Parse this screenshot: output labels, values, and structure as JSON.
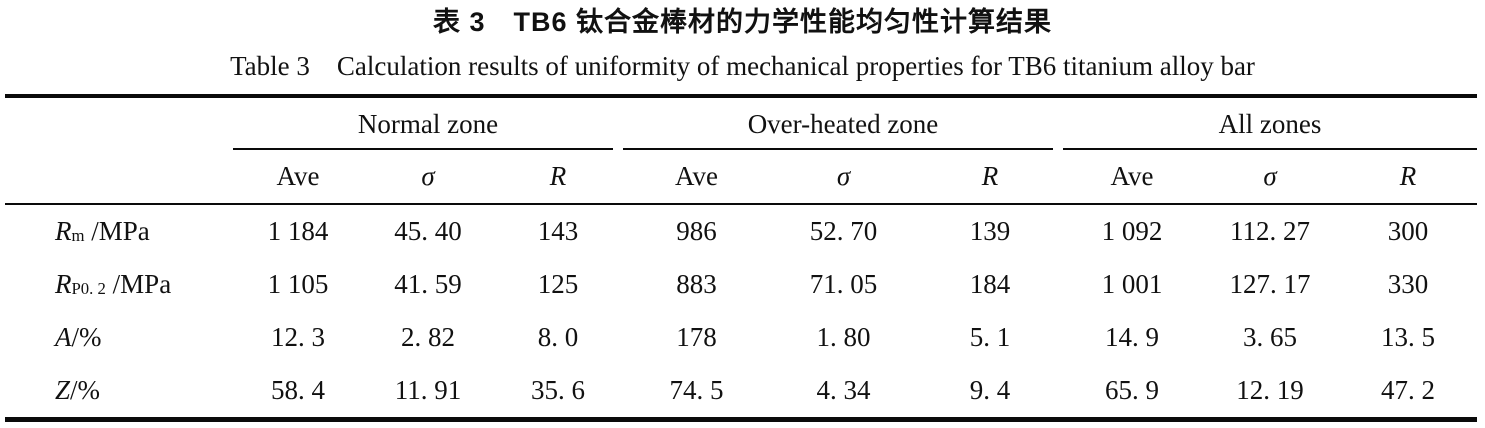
{
  "title": {
    "zh": "表 3　TB6 钛合金棒材的力学性能均匀性计算结果",
    "en": "Table 3　Calculation results of uniformity of mechanical properties for TB6 titanium alloy bar"
  },
  "table": {
    "groups": [
      {
        "label": "Normal zone"
      },
      {
        "label": "Over-heated zone"
      },
      {
        "label": "All zones"
      }
    ],
    "subheaders": [
      "Ave",
      "σ",
      "R"
    ],
    "rows": [
      {
        "property": {
          "symbol": "R",
          "subscript": "m",
          "unit": " /MPa"
        },
        "values": [
          "1 184",
          "45. 40",
          "143",
          "986",
          "52. 70",
          "139",
          "1 092",
          "112. 27",
          "300"
        ]
      },
      {
        "property": {
          "symbol": "R",
          "subscript": "P0. 2",
          "unit": " /MPa"
        },
        "values": [
          "1 105",
          "41. 59",
          "125",
          "883",
          "71. 05",
          "184",
          "1 001",
          "127. 17",
          "330"
        ]
      },
      {
        "property": {
          "symbol": "A",
          "subscript": "",
          "unit": "/%"
        },
        "values": [
          "12. 3",
          "2. 82",
          "8. 0",
          "178",
          "1. 80",
          "5. 1",
          "14. 9",
          "3. 65",
          "13. 5"
        ]
      },
      {
        "property": {
          "symbol": "Z",
          "subscript": "",
          "unit": "/%"
        },
        "values": [
          "58. 4",
          "11. 91",
          "35. 6",
          "74. 5",
          "4. 34",
          "9. 4",
          "65. 9",
          "12. 19",
          "47. 2"
        ]
      }
    ]
  }
}
